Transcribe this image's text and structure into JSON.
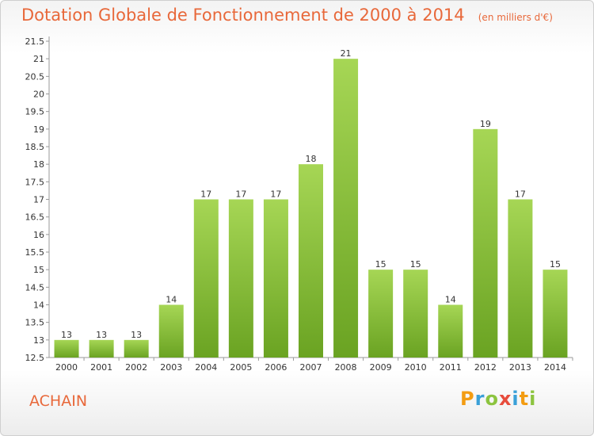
{
  "header": {
    "title": "Dotation Globale de Fonctionnement de 2000 à 2014",
    "unit": "(en milliers d'€)"
  },
  "footer": {
    "commune": "ACHAIN",
    "logo_letters": [
      "P",
      "r",
      "o",
      "x",
      "i",
      "t",
      "i"
    ],
    "logo_colors": [
      "#f39c12",
      "#3aa0d8",
      "#8cc43f",
      "#e74c3c",
      "#3aa0d8",
      "#f39c12",
      "#8cc43f"
    ]
  },
  "colors": {
    "title": "#e8683a",
    "bar_top": "#a6d655",
    "bar_bottom": "#6aa322"
  },
  "chart_data": {
    "type": "bar",
    "categories": [
      "2000",
      "2001",
      "2002",
      "2003",
      "2004",
      "2005",
      "2006",
      "2007",
      "2008",
      "2009",
      "2010",
      "2011",
      "2012",
      "2013",
      "2014"
    ],
    "values": [
      13,
      13,
      13,
      14,
      17,
      17,
      17,
      18,
      21,
      15,
      15,
      14,
      19,
      17,
      15
    ],
    "ylim": [
      12.5,
      21.5
    ],
    "yticks": [
      "12.5",
      "13",
      "13.5",
      "14",
      "14.5",
      "15",
      "15.5",
      "16",
      "16.5",
      "17",
      "17.5",
      "18",
      "18.5",
      "19",
      "19.5",
      "20",
      "20.5",
      "21",
      "21.5"
    ],
    "grid": false
  }
}
